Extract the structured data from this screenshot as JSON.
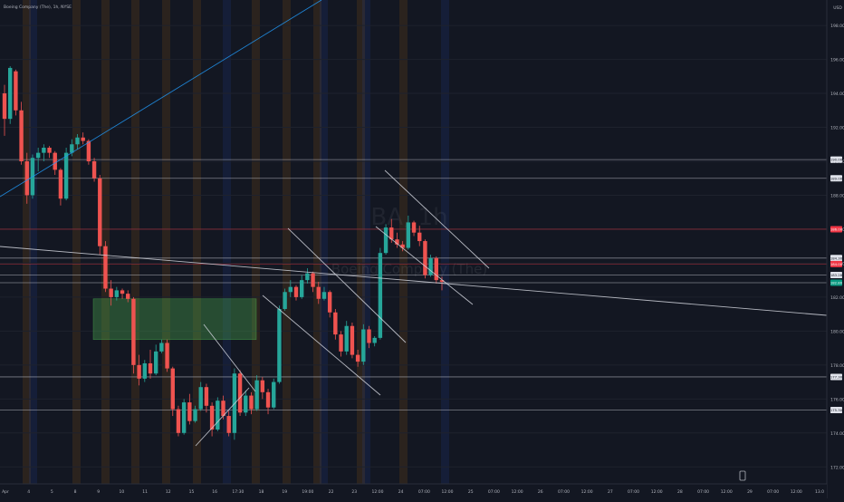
{
  "header": {
    "title": "Boeing Company (The), 1h, NYSE"
  },
  "price_axis": {
    "currency": "USD",
    "ticks": [
      "198.00",
      "196.00",
      "194.00",
      "192.00",
      "190.00",
      "188.00",
      "186.00",
      "184.00",
      "182.00",
      "180.00",
      "178.00",
      "176.00",
      "174.00",
      "172.00"
    ]
  },
  "watermark": {
    "ticker": "BA, 1h",
    "name": "Boeing Company (The)"
  },
  "time_axis": {
    "labels": [
      "Apr",
      "4",
      "5",
      "8",
      "9",
      "10",
      "11",
      "12",
      "15",
      "16",
      "17:30",
      "18",
      "19",
      "19:00",
      "22",
      "23",
      "12:00",
      "24",
      "07:00",
      "12:00",
      "25",
      "07:00",
      "12:00",
      "26",
      "07:00",
      "12:00",
      "27",
      "07:00",
      "12:00",
      "28",
      "07:00",
      "12:00",
      "29",
      "07:00",
      "12:00",
      "13.0"
    ]
  },
  "price_tags": [
    {
      "label": "190.00",
      "price": 190.1,
      "bg": "#e0e3eb",
      "fg": "#131722"
    },
    {
      "label": "189.00",
      "price": 189.0,
      "bg": "#e0e3eb",
      "fg": "#131722"
    },
    {
      "label": "186.00",
      "price": 186.0,
      "bg": "#f23645",
      "fg": "#ffffff"
    },
    {
      "label": "184.30",
      "price": 184.3,
      "bg": "#e0e3eb",
      "fg": "#131722"
    },
    {
      "label": "184.00",
      "price": 183.95,
      "bg": "#f23645",
      "fg": "#ffffff"
    },
    {
      "label": "183.28",
      "price": 183.3,
      "bg": "#e0e3eb",
      "fg": "#131722"
    },
    {
      "label": "182.80",
      "price": 182.85,
      "bg": "#089981",
      "fg": "#ffffff"
    },
    {
      "label": "177.30",
      "price": 177.3,
      "bg": "#e0e3eb",
      "fg": "#131722"
    },
    {
      "label": "175.30",
      "price": 175.35,
      "bg": "#e0e3eb",
      "fg": "#131722"
    }
  ],
  "colors": {
    "background": "#131722",
    "up": "#26a69a",
    "down": "#ef5350",
    "zone": "#4caf50",
    "session_orange": "#ff9800",
    "session_blue": "#2962ff",
    "trendline": "#2196f3"
  },
  "chart_data": {
    "type": "candlestick",
    "title": "Boeing Company (The), 1h, NYSE",
    "ylim": [
      171.0,
      199.5
    ],
    "horizontal_levels": [
      190.1,
      189.0,
      186.0,
      184.3,
      183.95,
      183.3,
      182.85,
      177.3,
      175.35
    ],
    "demand_zone": {
      "top": 181.9,
      "bottom": 179.5
    },
    "candles": [
      [
        194,
        194.5,
        191.5,
        192.5
      ],
      [
        192.5,
        195.6,
        192.2,
        195.5
      ],
      [
        195.3,
        195.4,
        192.7,
        193.0
      ],
      [
        193.0,
        193.5,
        189.8,
        190.0
      ],
      [
        190.0,
        190.5,
        187.5,
        188.0
      ],
      [
        188.0,
        190.4,
        187.8,
        190.2
      ],
      [
        190.2,
        190.8,
        189.4,
        190.5
      ],
      [
        190.5,
        191.0,
        190.0,
        190.8
      ],
      [
        190.8,
        190.9,
        190.2,
        190.5
      ],
      [
        190.5,
        190.6,
        189.2,
        189.5
      ],
      [
        189.5,
        189.6,
        187.4,
        187.8
      ],
      [
        187.8,
        190.8,
        187.7,
        190.5
      ],
      [
        190.5,
        191.3,
        190.3,
        191.0
      ],
      [
        191.0,
        191.6,
        190.7,
        191.4
      ],
      [
        191.4,
        191.7,
        191.0,
        191.2
      ],
      [
        191.2,
        191.3,
        189.8,
        190.0
      ],
      [
        190.0,
        190.2,
        188.8,
        189.0
      ],
      [
        189.0,
        189.2,
        184.5,
        185.0
      ],
      [
        185.0,
        185.3,
        182.3,
        182.5
      ],
      [
        182.5,
        183.0,
        181.5,
        182.0
      ],
      [
        182.0,
        182.6,
        181.8,
        182.4
      ],
      [
        182.4,
        182.5,
        181.9,
        182.2
      ],
      [
        182.2,
        182.4,
        181.7,
        181.9
      ],
      [
        181.9,
        182.0,
        177.5,
        178.0
      ],
      [
        178.0,
        178.6,
        176.8,
        177.2
      ],
      [
        177.2,
        178.3,
        177.0,
        178.1
      ],
      [
        178.1,
        178.9,
        177.2,
        177.5
      ],
      [
        177.5,
        179.2,
        177.4,
        178.8
      ],
      [
        178.8,
        179.5,
        178.7,
        179.3
      ],
      [
        179.3,
        179.5,
        177.6,
        177.8
      ],
      [
        177.8,
        177.9,
        175.0,
        175.4
      ],
      [
        175.4,
        175.6,
        173.8,
        174.0
      ],
      [
        174.0,
        176.0,
        173.9,
        175.8
      ],
      [
        175.8,
        176.3,
        174.5,
        174.7
      ],
      [
        174.7,
        175.6,
        174.6,
        175.4
      ],
      [
        175.4,
        177.0,
        175.3,
        176.7
      ],
      [
        176.7,
        176.9,
        175.2,
        175.6
      ],
      [
        175.6,
        175.8,
        173.8,
        174.2
      ],
      [
        174.2,
        176.1,
        174.1,
        175.9
      ],
      [
        175.9,
        176.2,
        174.8,
        175.0
      ],
      [
        175.0,
        175.3,
        173.8,
        174.0
      ],
      [
        174.0,
        177.8,
        173.6,
        177.5
      ],
      [
        177.5,
        177.7,
        175.0,
        175.2
      ],
      [
        175.2,
        176.5,
        175.0,
        176.2
      ],
      [
        176.2,
        176.4,
        175.1,
        175.4
      ],
      [
        175.4,
        177.4,
        175.3,
        177.1
      ],
      [
        177.1,
        177.3,
        176.0,
        176.4
      ],
      [
        176.4,
        176.6,
        175.1,
        175.5
      ],
      [
        175.5,
        177.2,
        175.4,
        177.0
      ],
      [
        177.0,
        181.5,
        176.9,
        181.3
      ],
      [
        181.3,
        182.5,
        181.2,
        182.3
      ],
      [
        182.3,
        183.0,
        182.0,
        182.6
      ],
      [
        182.6,
        182.7,
        181.8,
        182.0
      ],
      [
        182.0,
        183.3,
        181.9,
        183.0
      ],
      [
        183.0,
        183.7,
        182.8,
        183.4
      ],
      [
        183.4,
        183.5,
        182.3,
        182.6
      ],
      [
        182.6,
        182.9,
        181.6,
        181.9
      ],
      [
        181.9,
        182.6,
        181.8,
        182.3
      ],
      [
        182.3,
        182.4,
        180.8,
        181.1
      ],
      [
        181.1,
        181.3,
        179.5,
        179.8
      ],
      [
        179.8,
        180.0,
        178.5,
        178.8
      ],
      [
        178.8,
        180.6,
        178.6,
        180.3
      ],
      [
        180.3,
        180.5,
        178.4,
        178.6
      ],
      [
        178.6,
        178.9,
        177.9,
        178.2
      ],
      [
        178.2,
        180.4,
        178.0,
        180.1
      ],
      [
        180.1,
        180.3,
        179.0,
        179.3
      ],
      [
        179.3,
        179.7,
        179.1,
        179.6
      ],
      [
        179.6,
        184.9,
        179.5,
        184.6
      ],
      [
        184.6,
        186.3,
        184.5,
        186.1
      ],
      [
        186.1,
        186.6,
        185.2,
        185.4
      ],
      [
        185.4,
        185.8,
        184.9,
        185.1
      ],
      [
        185.1,
        185.3,
        184.7,
        184.9
      ],
      [
        184.9,
        186.8,
        184.8,
        186.4
      ],
      [
        186.4,
        186.5,
        185.6,
        185.8
      ],
      [
        185.8,
        186.2,
        185.0,
        185.3
      ],
      [
        185.3,
        185.4,
        183.1,
        183.3
      ],
      [
        183.3,
        184.5,
        183.2,
        184.3
      ],
      [
        184.3,
        184.4,
        182.8,
        183.0
      ],
      [
        183.0,
        183.2,
        182.4,
        182.9
      ]
    ]
  }
}
